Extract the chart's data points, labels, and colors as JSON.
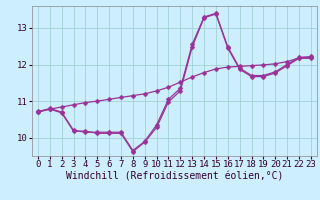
{
  "xlabel": "Windchill (Refroidissement éolien,°C)",
  "background_color": "#cceeff",
  "grid_color": "#99cccc",
  "line_color": "#993399",
  "x": [
    0,
    1,
    2,
    3,
    4,
    5,
    6,
    7,
    8,
    9,
    10,
    11,
    12,
    13,
    14,
    15,
    16,
    17,
    18,
    19,
    20,
    21,
    22,
    23
  ],
  "line_main": [
    10.7,
    10.8,
    10.7,
    10.2,
    10.15,
    10.15,
    10.15,
    10.15,
    9.65,
    9.9,
    10.35,
    11.05,
    11.35,
    12.55,
    13.3,
    13.4,
    12.48,
    11.9,
    11.7,
    11.7,
    11.8,
    12.0,
    12.2,
    12.2
  ],
  "line_smooth1": [
    10.7,
    10.78,
    10.68,
    10.18,
    10.18,
    10.12,
    10.12,
    10.12,
    9.62,
    9.88,
    10.28,
    10.98,
    11.28,
    12.48,
    13.28,
    13.38,
    12.45,
    11.87,
    11.67,
    11.67,
    11.77,
    11.97,
    12.17,
    12.17
  ],
  "trendline": [
    10.72,
    10.78,
    10.84,
    10.9,
    10.96,
    11.0,
    11.05,
    11.1,
    11.15,
    11.2,
    11.28,
    11.38,
    11.52,
    11.66,
    11.78,
    11.88,
    11.93,
    11.95,
    11.97,
    11.99,
    12.02,
    12.08,
    12.18,
    12.22
  ],
  "ylim": [
    9.5,
    13.6
  ],
  "yticks": [
    10,
    11,
    12,
    13
  ],
  "xticks": [
    0,
    1,
    2,
    3,
    4,
    5,
    6,
    7,
    8,
    9,
    10,
    11,
    12,
    13,
    14,
    15,
    16,
    17,
    18,
    19,
    20,
    21,
    22,
    23
  ],
  "marker": "D",
  "markersize": 2.5,
  "linewidth": 0.9,
  "xlabel_fontsize": 7,
  "tick_fontsize": 6.5
}
